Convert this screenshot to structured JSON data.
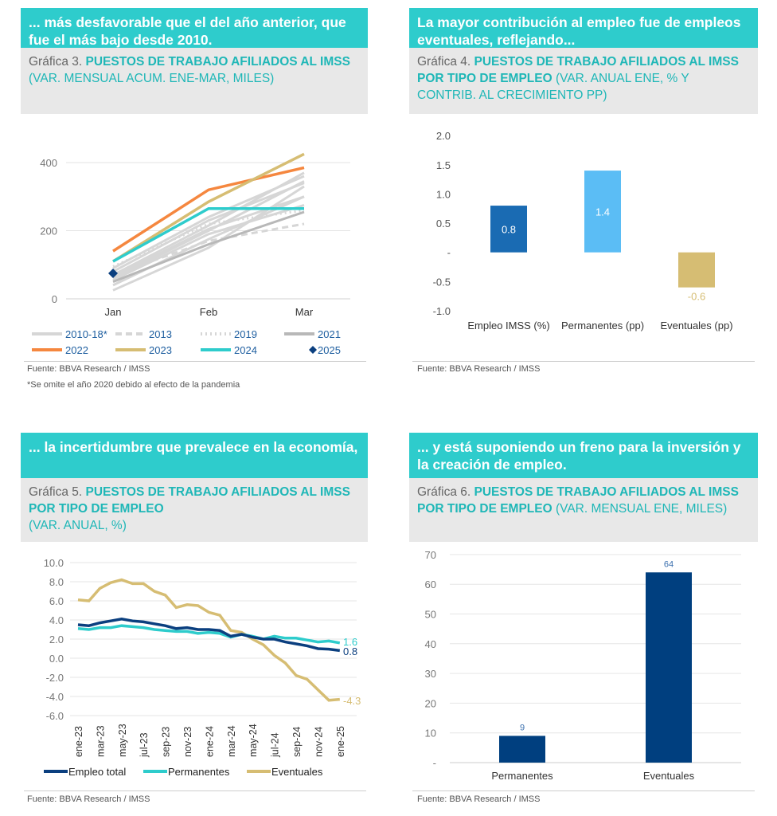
{
  "panels": [
    {
      "header": "... más desfavorable que el del año anterior, que fue el más bajo desde 2010.",
      "chart_prefix": "Gráfica 3.",
      "chart_title": "PUESTOS DE TRABAJO AFILIADOS AL IMSS",
      "chart_subtitle": "(VAR. MENSUAL ACUM. ENE-MAR, MILES)",
      "source": "Fuente: BBVA Research / IMSS",
      "note": "*Se omite el año 2020 debido al efecto de la pandemia"
    },
    {
      "header": "La mayor contribución al empleo fue de empleos eventuales, reflejando...",
      "chart_prefix": "Gráfica 4.",
      "chart_title": "PUESTOS DE TRABAJO AFILIADOS AL IMSS POR TIPO DE EMPLEO",
      "chart_subtitle": "(VAR. ANUAL ENE, % Y CONTRIB. AL CRECIMIENTO PP)",
      "source": "Fuente: BBVA Research / IMSS"
    },
    {
      "header": "... la incertidumbre que prevalece en la economía,",
      "chart_prefix": "Gráfica 5.",
      "chart_title": "PUESTOS DE TRABAJO AFILIADOS AL IMSS POR TIPO DE EMPLEO",
      "chart_subtitle": "(VAR. ANUAL, %)",
      "source": "Fuente: BBVA Research / IMSS"
    },
    {
      "header": "... y está suponiendo un freno para la inversión y la creación de empleo.",
      "chart_prefix": "Gráfica 6.",
      "chart_title": "PUESTOS DE TRABAJO AFILIADOS AL IMSS POR TIPO DE EMPLEO",
      "chart_subtitle": " (VAR. MENSUAL ENE, MILES)",
      "source": "Fuente: BBVA Research / IMSS"
    }
  ],
  "chart_data": [
    {
      "type": "line",
      "title": "PUESTOS DE TRABAJO AFILIADOS AL IMSS",
      "categories": [
        "Jan",
        "Feb",
        "Mar"
      ],
      "ylim": [
        0,
        450
      ],
      "yticks": [
        {
          "v": 0,
          "label": "0"
        },
        {
          "v": 200,
          "label": "200"
        },
        {
          "v": 400,
          "label": "400"
        }
      ],
      "grid": true,
      "legend_position": "bottom",
      "series": [
        {
          "name": "2010-18*",
          "style": "solid",
          "color": "#d6d6d6",
          "lines": [
            [
              25,
              150,
              330
            ],
            [
              40,
              175,
              300
            ],
            [
              60,
              200,
              345
            ],
            [
              70,
              215,
              370
            ],
            [
              80,
              230,
              340
            ],
            [
              55,
              190,
              275
            ],
            [
              65,
              205,
              300
            ],
            [
              90,
              240,
              360
            ]
          ]
        },
        {
          "name": "2013",
          "style": "dashed",
          "color": "#d6d6d6",
          "values": [
            70,
            170,
            220
          ]
        },
        {
          "name": "2019",
          "style": "dotted",
          "color": "#d6d6d6",
          "values": [
            95,
            220,
            260
          ]
        },
        {
          "name": "2021",
          "style": "solid",
          "color": "#b8b8b8",
          "values": [
            50,
            160,
            255
          ]
        },
        {
          "name": "2022",
          "style": "solid",
          "color": "#f5873f",
          "values": [
            140,
            320,
            385
          ]
        },
        {
          "name": "2023",
          "style": "solid",
          "color": "#d6bd73",
          "values": [
            110,
            285,
            425
          ]
        },
        {
          "name": "2024",
          "style": "solid",
          "color": "#2ecccc",
          "values": [
            110,
            265,
            265
          ]
        },
        {
          "name": "2025",
          "style": "marker",
          "color": "#0b3f7f",
          "values": [
            75,
            null,
            null
          ]
        }
      ]
    },
    {
      "type": "bar",
      "categories": [
        "Empleo IMSS (%)",
        "Permanentes (pp)",
        "Eventuales (pp)"
      ],
      "values": [
        0.8,
        1.4,
        -0.6
      ],
      "data_labels": [
        "0.8",
        "1.4",
        "-0.6"
      ],
      "colors": [
        "#1a6bb3",
        "#5bbdf5",
        "#d6bd73"
      ],
      "ylim": [
        -1.0,
        2.0
      ],
      "yticks": [
        {
          "v": 2,
          "label": "2.0"
        },
        {
          "v": 1.5,
          "label": "1.5"
        },
        {
          "v": 1,
          "label": "1.0"
        },
        {
          "v": 0.5,
          "label": "0.5"
        },
        {
          "v": 0,
          "label": "-"
        },
        {
          "v": -0.5,
          "label": "-0.5"
        },
        {
          "v": -1,
          "label": "-1.0"
        }
      ],
      "grid": false
    },
    {
      "type": "line",
      "x": [
        "ene-23",
        "feb-23",
        "mar-23",
        "abr-23",
        "may-23",
        "jun-23",
        "jul-23",
        "ago-23",
        "sep-23",
        "oct-23",
        "nov-23",
        "dic-23",
        "ene-24",
        "feb-24",
        "mar-24",
        "abr-24",
        "may-24",
        "jun-24",
        "jul-24",
        "ago-24",
        "sep-24",
        "oct-24",
        "nov-24",
        "dic-24",
        "ene-25"
      ],
      "xtick_labels": [
        "ene-23",
        "mar-23",
        "may-23",
        "jul-23",
        "sep-23",
        "nov-23",
        "ene-24",
        "mar-24",
        "may-24",
        "jul-24",
        "sep-24",
        "nov-24",
        "ene-25"
      ],
      "ylim": [
        -6.0,
        10.0
      ],
      "yticks": [
        {
          "v": 10,
          "label": "10.0"
        },
        {
          "v": 8,
          "label": "8.0"
        },
        {
          "v": 6,
          "label": "6.0"
        },
        {
          "v": 4,
          "label": "4.0"
        },
        {
          "v": 2,
          "label": "2.0"
        },
        {
          "v": 0,
          "label": "0.0"
        },
        {
          "v": -2,
          "label": "-2.0"
        },
        {
          "v": -4,
          "label": "-4.0"
        },
        {
          "v": -6,
          "label": "-6.0"
        }
      ],
      "grid": true,
      "legend_position": "bottom",
      "series": [
        {
          "name": "Empleo total",
          "color": "#0b3f7f",
          "end_label": "0.8",
          "values": [
            3.5,
            3.4,
            3.7,
            3.9,
            4.1,
            3.9,
            3.8,
            3.6,
            3.4,
            3.1,
            3.2,
            3.0,
            3.0,
            2.9,
            2.3,
            2.5,
            2.2,
            2.0,
            2.0,
            1.7,
            1.5,
            1.3,
            1.0,
            0.95,
            0.8
          ]
        },
        {
          "name": "Permanentes",
          "color": "#2ecccc",
          "end_label": "1.6",
          "values": [
            3.1,
            3.0,
            3.2,
            3.2,
            3.4,
            3.3,
            3.2,
            3.0,
            2.9,
            2.8,
            2.8,
            2.6,
            2.7,
            2.6,
            2.2,
            2.5,
            2.3,
            2.0,
            2.3,
            2.1,
            2.1,
            1.9,
            1.7,
            1.8,
            1.6
          ]
        },
        {
          "name": "Eventuales",
          "color": "#d6bd73",
          "end_label": "-4.3",
          "values": [
            6.1,
            6.0,
            7.3,
            7.9,
            8.2,
            7.8,
            7.8,
            7.0,
            6.6,
            5.3,
            5.6,
            5.5,
            4.8,
            4.5,
            2.9,
            2.7,
            2.0,
            1.4,
            0.3,
            -0.5,
            -1.8,
            -2.2,
            -3.3,
            -4.4,
            -4.3
          ]
        }
      ]
    },
    {
      "type": "bar",
      "categories": [
        "Permanentes",
        "Eventuales"
      ],
      "values": [
        9,
        64
      ],
      "data_labels": [
        "9",
        "64"
      ],
      "colors": [
        "#003f7f",
        "#003f7f"
      ],
      "ylim": [
        0,
        70
      ],
      "yticks": [
        {
          "v": 70,
          "label": "70"
        },
        {
          "v": 60,
          "label": "60"
        },
        {
          "v": 50,
          "label": "50"
        },
        {
          "v": 40,
          "label": "40"
        },
        {
          "v": 30,
          "label": "30"
        },
        {
          "v": 20,
          "label": "20"
        },
        {
          "v": 10,
          "label": "10"
        },
        {
          "v": 0,
          "label": "-"
        }
      ],
      "grid": true
    }
  ]
}
